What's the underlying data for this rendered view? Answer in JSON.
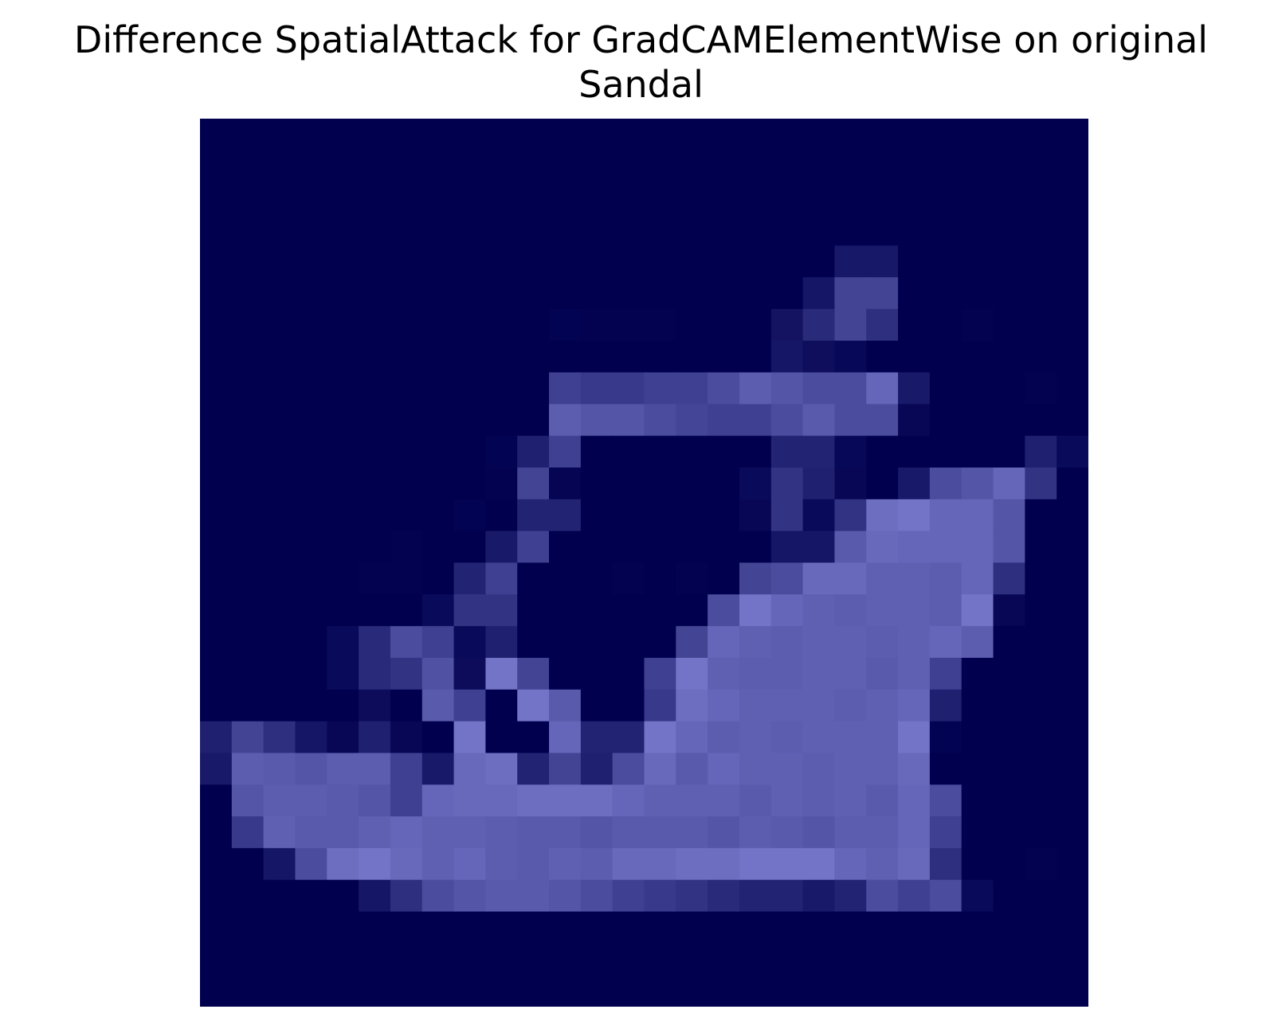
{
  "chart_data": {
    "type": "heatmap",
    "title": "Difference SpatialAttack for GradCAMElementWise on original",
    "subtitle": "Sandal",
    "xlabel": "",
    "ylabel": "",
    "axes_visible": false,
    "grid": false,
    "legend": "none",
    "colormap": {
      "low": "#00004f",
      "high": "#a9a9ff"
    },
    "rows": 28,
    "cols": 28,
    "values": [
      [
        0,
        0,
        0,
        0,
        0,
        0,
        0,
        0,
        0,
        0,
        0,
        0,
        0,
        0,
        0,
        0,
        0,
        0,
        0,
        0,
        0,
        0,
        0,
        0,
        0,
        0,
        0,
        0
      ],
      [
        0,
        0,
        0,
        0,
        0,
        0,
        0,
        0,
        0,
        0,
        0,
        0,
        0,
        0,
        0,
        0,
        0,
        0,
        0,
        0,
        0,
        0,
        0,
        0,
        0,
        0,
        0,
        0
      ],
      [
        0,
        0,
        0,
        0,
        0,
        0,
        0,
        0,
        0,
        0,
        0,
        0,
        0,
        0,
        0,
        0,
        0,
        0,
        0,
        0,
        0,
        0,
        0,
        0,
        0,
        0,
        0,
        0
      ],
      [
        0,
        0,
        0,
        0,
        0,
        0,
        0,
        0,
        0,
        0,
        0,
        0,
        0,
        0,
        0,
        0,
        0,
        0,
        0,
        0,
        0,
        0,
        0,
        0,
        0,
        0,
        0,
        0
      ],
      [
        0,
        0,
        0,
        0,
        0,
        0,
        0,
        0,
        0,
        0,
        0,
        0,
        0,
        0,
        0,
        0,
        0,
        0,
        0,
        0,
        0.14,
        0.14,
        0,
        0,
        0,
        0,
        0,
        0
      ],
      [
        0,
        0,
        0,
        0,
        0,
        0,
        0,
        0,
        0,
        0,
        0,
        0,
        0,
        0,
        0,
        0,
        0,
        0,
        0,
        0.13,
        0.4,
        0.4,
        0,
        0,
        0,
        0,
        0,
        0
      ],
      [
        0,
        0,
        0,
        0,
        0,
        0,
        0,
        0,
        0,
        0,
        0,
        0.02,
        0.01,
        0.01,
        0.01,
        0,
        0,
        0,
        0.11,
        0.25,
        0.4,
        0.28,
        0,
        0,
        0.01,
        0,
        0,
        0
      ],
      [
        0,
        0,
        0,
        0,
        0,
        0,
        0,
        0,
        0,
        0,
        0,
        0,
        0,
        0,
        0,
        0,
        0,
        0,
        0.13,
        0.08,
        0.05,
        0,
        0,
        0,
        0,
        0,
        0,
        0
      ],
      [
        0,
        0,
        0,
        0,
        0,
        0,
        0,
        0,
        0,
        0,
        0,
        0.38,
        0.34,
        0.34,
        0.38,
        0.38,
        0.45,
        0.55,
        0.5,
        0.45,
        0.45,
        0.6,
        0.15,
        0,
        0,
        0,
        0.01,
        0
      ],
      [
        0,
        0,
        0,
        0,
        0,
        0,
        0,
        0,
        0,
        0,
        0,
        0.55,
        0.5,
        0.5,
        0.45,
        0.41,
        0.38,
        0.38,
        0.45,
        0.53,
        0.45,
        0.45,
        0.04,
        0,
        0,
        0,
        0,
        0
      ],
      [
        0,
        0,
        0,
        0,
        0,
        0,
        0,
        0,
        0,
        0.02,
        0.19,
        0.38,
        0,
        0,
        0,
        0,
        0,
        0,
        0.21,
        0.21,
        0.05,
        0,
        0,
        0,
        0,
        0,
        0.19,
        0.06
      ],
      [
        0,
        0,
        0,
        0,
        0,
        0,
        0,
        0,
        0,
        0.01,
        0.4,
        0.03,
        0,
        0,
        0,
        0,
        0,
        0.06,
        0.3,
        0.19,
        0.04,
        0,
        0.15,
        0.45,
        0.5,
        0.6,
        0.3,
        0
      ],
      [
        0,
        0,
        0,
        0,
        0,
        0,
        0,
        0,
        0.02,
        0,
        0.21,
        0.21,
        0,
        0,
        0,
        0,
        0,
        0.04,
        0.3,
        0.06,
        0.3,
        0.65,
        0.68,
        0.6,
        0.6,
        0.5,
        0,
        0
      ],
      [
        0,
        0,
        0,
        0,
        0,
        0,
        0.01,
        0,
        0,
        0.15,
        0.38,
        0,
        0,
        0,
        0,
        0,
        0,
        0,
        0.13,
        0.13,
        0.53,
        0.62,
        0.6,
        0.6,
        0.6,
        0.5,
        0,
        0
      ],
      [
        0,
        0,
        0,
        0,
        0,
        0.01,
        0.01,
        0,
        0.21,
        0.38,
        0,
        0,
        0,
        0.01,
        0,
        0.01,
        0,
        0.4,
        0.45,
        0.62,
        0.62,
        0.57,
        0.57,
        0.55,
        0.6,
        0.28,
        0,
        0
      ],
      [
        0,
        0,
        0,
        0,
        0,
        0,
        0,
        0.06,
        0.3,
        0.3,
        0,
        0,
        0,
        0,
        0,
        0,
        0.45,
        0.68,
        0.6,
        0.57,
        0.55,
        0.57,
        0.57,
        0.55,
        0.68,
        0.04,
        0,
        0
      ],
      [
        0,
        0,
        0,
        0,
        0.06,
        0.25,
        0.45,
        0.38,
        0.06,
        0.19,
        0,
        0,
        0,
        0,
        0,
        0.4,
        0.6,
        0.57,
        0.55,
        0.57,
        0.57,
        0.55,
        0.57,
        0.6,
        0.55,
        0,
        0,
        0
      ],
      [
        0,
        0,
        0,
        0,
        0.06,
        0.25,
        0.3,
        0.48,
        0.07,
        0.68,
        0.4,
        0,
        0,
        0,
        0.38,
        0.68,
        0.57,
        0.55,
        0.55,
        0.57,
        0.57,
        0.53,
        0.57,
        0.38,
        0,
        0,
        0,
        0
      ],
      [
        0,
        0,
        0,
        0,
        0,
        0.07,
        0,
        0.53,
        0.38,
        0,
        0.68,
        0.53,
        0,
        0,
        0.34,
        0.65,
        0.6,
        0.57,
        0.57,
        0.57,
        0.55,
        0.57,
        0.6,
        0.19,
        0,
        0,
        0,
        0
      ],
      [
        0.19,
        0.4,
        0.28,
        0.13,
        0.04,
        0.19,
        0.04,
        0,
        0.68,
        0,
        0,
        0.6,
        0.21,
        0.21,
        0.68,
        0.6,
        0.55,
        0.57,
        0.55,
        0.57,
        0.57,
        0.57,
        0.68,
        0.02,
        0,
        0,
        0,
        0
      ],
      [
        0.15,
        0.55,
        0.53,
        0.5,
        0.55,
        0.55,
        0.38,
        0.15,
        0.62,
        0.65,
        0.21,
        0.4,
        0.19,
        0.45,
        0.62,
        0.53,
        0.6,
        0.57,
        0.57,
        0.55,
        0.57,
        0.57,
        0.62,
        0,
        0,
        0,
        0,
        0
      ],
      [
        0,
        0.5,
        0.55,
        0.55,
        0.53,
        0.5,
        0.38,
        0.6,
        0.62,
        0.62,
        0.65,
        0.65,
        0.65,
        0.6,
        0.57,
        0.57,
        0.57,
        0.53,
        0.57,
        0.55,
        0.57,
        0.53,
        0.6,
        0.45,
        0,
        0,
        0,
        0
      ],
      [
        0,
        0.34,
        0.57,
        0.53,
        0.53,
        0.57,
        0.6,
        0.57,
        0.57,
        0.55,
        0.53,
        0.53,
        0.5,
        0.53,
        0.53,
        0.53,
        0.5,
        0.55,
        0.53,
        0.5,
        0.55,
        0.55,
        0.6,
        0.38,
        0,
        0,
        0,
        0
      ],
      [
        0,
        0,
        0.13,
        0.45,
        0.65,
        0.68,
        0.62,
        0.57,
        0.6,
        0.55,
        0.53,
        0.57,
        0.55,
        0.62,
        0.62,
        0.65,
        0.65,
        0.68,
        0.68,
        0.68,
        0.6,
        0.57,
        0.62,
        0.28,
        0,
        0,
        0.01,
        0
      ],
      [
        0,
        0,
        0,
        0,
        0,
        0.13,
        0.28,
        0.45,
        0.5,
        0.53,
        0.53,
        0.5,
        0.45,
        0.38,
        0.34,
        0.3,
        0.25,
        0.21,
        0.21,
        0.15,
        0.21,
        0.45,
        0.38,
        0.45,
        0.06,
        0,
        0,
        0
      ],
      [
        0,
        0,
        0,
        0,
        0,
        0,
        0,
        0,
        0,
        0,
        0,
        0,
        0,
        0,
        0,
        0,
        0,
        0,
        0,
        0,
        0,
        0,
        0,
        0,
        0,
        0,
        0,
        0
      ],
      [
        0,
        0,
        0,
        0,
        0,
        0,
        0,
        0,
        0,
        0,
        0,
        0,
        0,
        0,
        0,
        0,
        0,
        0,
        0,
        0,
        0,
        0,
        0,
        0,
        0,
        0,
        0,
        0
      ],
      [
        0,
        0,
        0,
        0,
        0,
        0,
        0,
        0,
        0,
        0,
        0,
        0,
        0,
        0,
        0,
        0,
        0,
        0,
        0,
        0,
        0,
        0,
        0,
        0,
        0,
        0,
        0,
        0
      ]
    ]
  }
}
